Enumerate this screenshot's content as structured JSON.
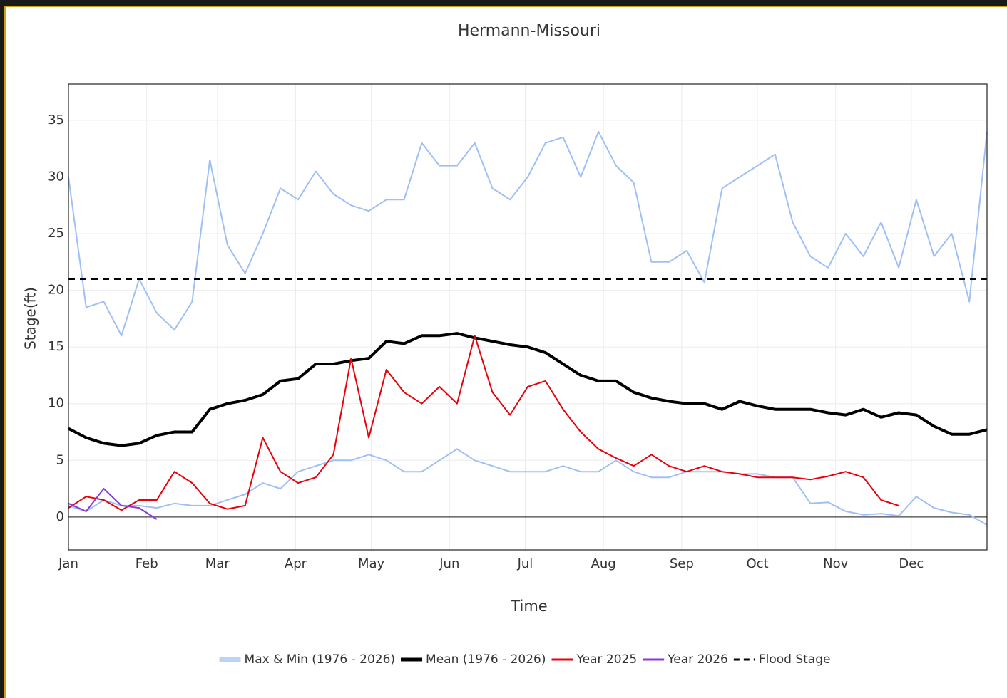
{
  "chart_data": {
    "type": "line",
    "title": "Hermann-Missouri",
    "xlabel": "Time",
    "ylabel": "Stage(ft)",
    "xlim": [
      1,
      365
    ],
    "ylim": [
      -2.9,
      38.2
    ],
    "xticks": [
      {
        "value": 1,
        "label": "Jan"
      },
      {
        "value": 32,
        "label": "Feb"
      },
      {
        "value": 60,
        "label": "Mar"
      },
      {
        "value": 91,
        "label": "Apr"
      },
      {
        "value": 121,
        "label": "May"
      },
      {
        "value": 152,
        "label": "Jun"
      },
      {
        "value": 182,
        "label": "Jul"
      },
      {
        "value": 213,
        "label": "Aug"
      },
      {
        "value": 244,
        "label": "Sep"
      },
      {
        "value": 274,
        "label": "Oct"
      },
      {
        "value": 305,
        "label": "Nov"
      },
      {
        "value": 335,
        "label": "Dec"
      }
    ],
    "yticks": [
      0,
      5,
      10,
      15,
      20,
      25,
      30,
      35
    ],
    "grid": true,
    "x": [
      1,
      8,
      15,
      22,
      29,
      36,
      43,
      50,
      57,
      64,
      71,
      78,
      85,
      92,
      99,
      106,
      113,
      120,
      127,
      134,
      141,
      148,
      155,
      162,
      169,
      176,
      183,
      190,
      197,
      204,
      211,
      218,
      225,
      232,
      239,
      246,
      253,
      260,
      267,
      274,
      281,
      288,
      295,
      302,
      309,
      316,
      323,
      330,
      337,
      344,
      351,
      358,
      365
    ],
    "band": {
      "name": "Max & Min (1976 - 2026)",
      "color": "#9fc0f5",
      "upper": [
        30,
        18.5,
        19,
        16,
        21,
        18,
        16.5,
        19,
        31.5,
        24,
        21.5,
        25,
        29,
        28,
        30.5,
        28.5,
        27.5,
        27,
        28,
        28,
        33,
        31,
        31,
        33,
        29,
        28,
        30,
        33,
        33.5,
        30,
        34,
        31,
        29.5,
        22.5,
        22.5,
        23.5,
        20.7,
        29,
        30,
        31,
        32,
        26,
        23,
        22,
        25,
        23,
        26,
        22,
        28,
        23,
        25,
        19,
        34
      ],
      "lower": [
        1,
        0.5,
        1.5,
        1,
        1,
        0.8,
        1.2,
        1,
        1,
        1.5,
        2,
        3,
        2.5,
        4,
        4.5,
        5,
        5,
        5.5,
        5,
        4,
        4,
        5,
        6,
        5,
        4.5,
        4,
        4,
        4,
        4.5,
        4,
        4,
        5,
        4,
        3.5,
        3.5,
        4,
        4,
        4,
        3.8,
        3.8,
        3.5,
        3.5,
        1.2,
        1.3,
        0.5,
        0.2,
        0.3,
        0.1,
        1.8,
        0.8,
        0.4,
        0.2,
        -0.7
      ]
    },
    "series": [
      {
        "name": "Mean (1976 - 2026)",
        "color": "#000000",
        "width": 4,
        "values": [
          7.8,
          7,
          6.5,
          6.3,
          6.5,
          7.2,
          7.5,
          7.5,
          9.5,
          10,
          10.3,
          10.8,
          12,
          12.2,
          13.5,
          13.5,
          13.8,
          14,
          15.5,
          15.3,
          16,
          16,
          16.2,
          15.8,
          15.5,
          15.2,
          15,
          14.5,
          13.5,
          12.5,
          12,
          12,
          11,
          10.5,
          10.2,
          10,
          10,
          9.5,
          10.2,
          9.8,
          9.5,
          9.5,
          9.5,
          9.2,
          9,
          9.5,
          8.8,
          9.2,
          9,
          8,
          7.3,
          7.3,
          7.7
        ]
      },
      {
        "name": "Year 2025",
        "color": "#e8000b",
        "width": 2,
        "values": [
          0.8,
          1.8,
          1.5,
          0.6,
          1.5,
          1.5,
          4,
          3,
          1.2,
          0.7,
          1,
          7,
          4,
          3,
          3.5,
          5.5,
          14,
          7,
          13,
          11,
          10,
          11.5,
          10,
          16,
          11,
          9,
          11.5,
          12,
          9.5,
          7.5,
          6,
          5.2,
          4.5,
          5.5,
          4.5,
          4,
          4.5,
          4,
          3.8,
          3.5,
          3.5,
          3.5,
          3.3,
          3.6,
          4,
          3.5,
          1.5,
          1.0,
          null,
          null,
          null,
          null,
          null
        ]
      },
      {
        "name": "Year 2026",
        "color": "#8a3ad6",
        "width": 2,
        "values": [
          1.2,
          0.5,
          2.5,
          1,
          0.8,
          -0.2,
          null,
          null,
          null,
          null,
          null,
          null,
          null,
          null,
          null,
          null,
          null,
          null,
          null,
          null,
          null,
          null,
          null,
          null,
          null,
          null,
          null,
          null,
          null,
          null,
          null,
          null,
          null,
          null,
          null,
          null,
          null,
          null,
          null,
          null,
          null,
          null,
          null,
          null,
          null,
          null,
          null,
          null,
          null,
          null,
          null,
          null,
          null
        ]
      }
    ],
    "flood_stage": {
      "name": "Flood Stage",
      "value": 21,
      "color": "#000000"
    }
  }
}
